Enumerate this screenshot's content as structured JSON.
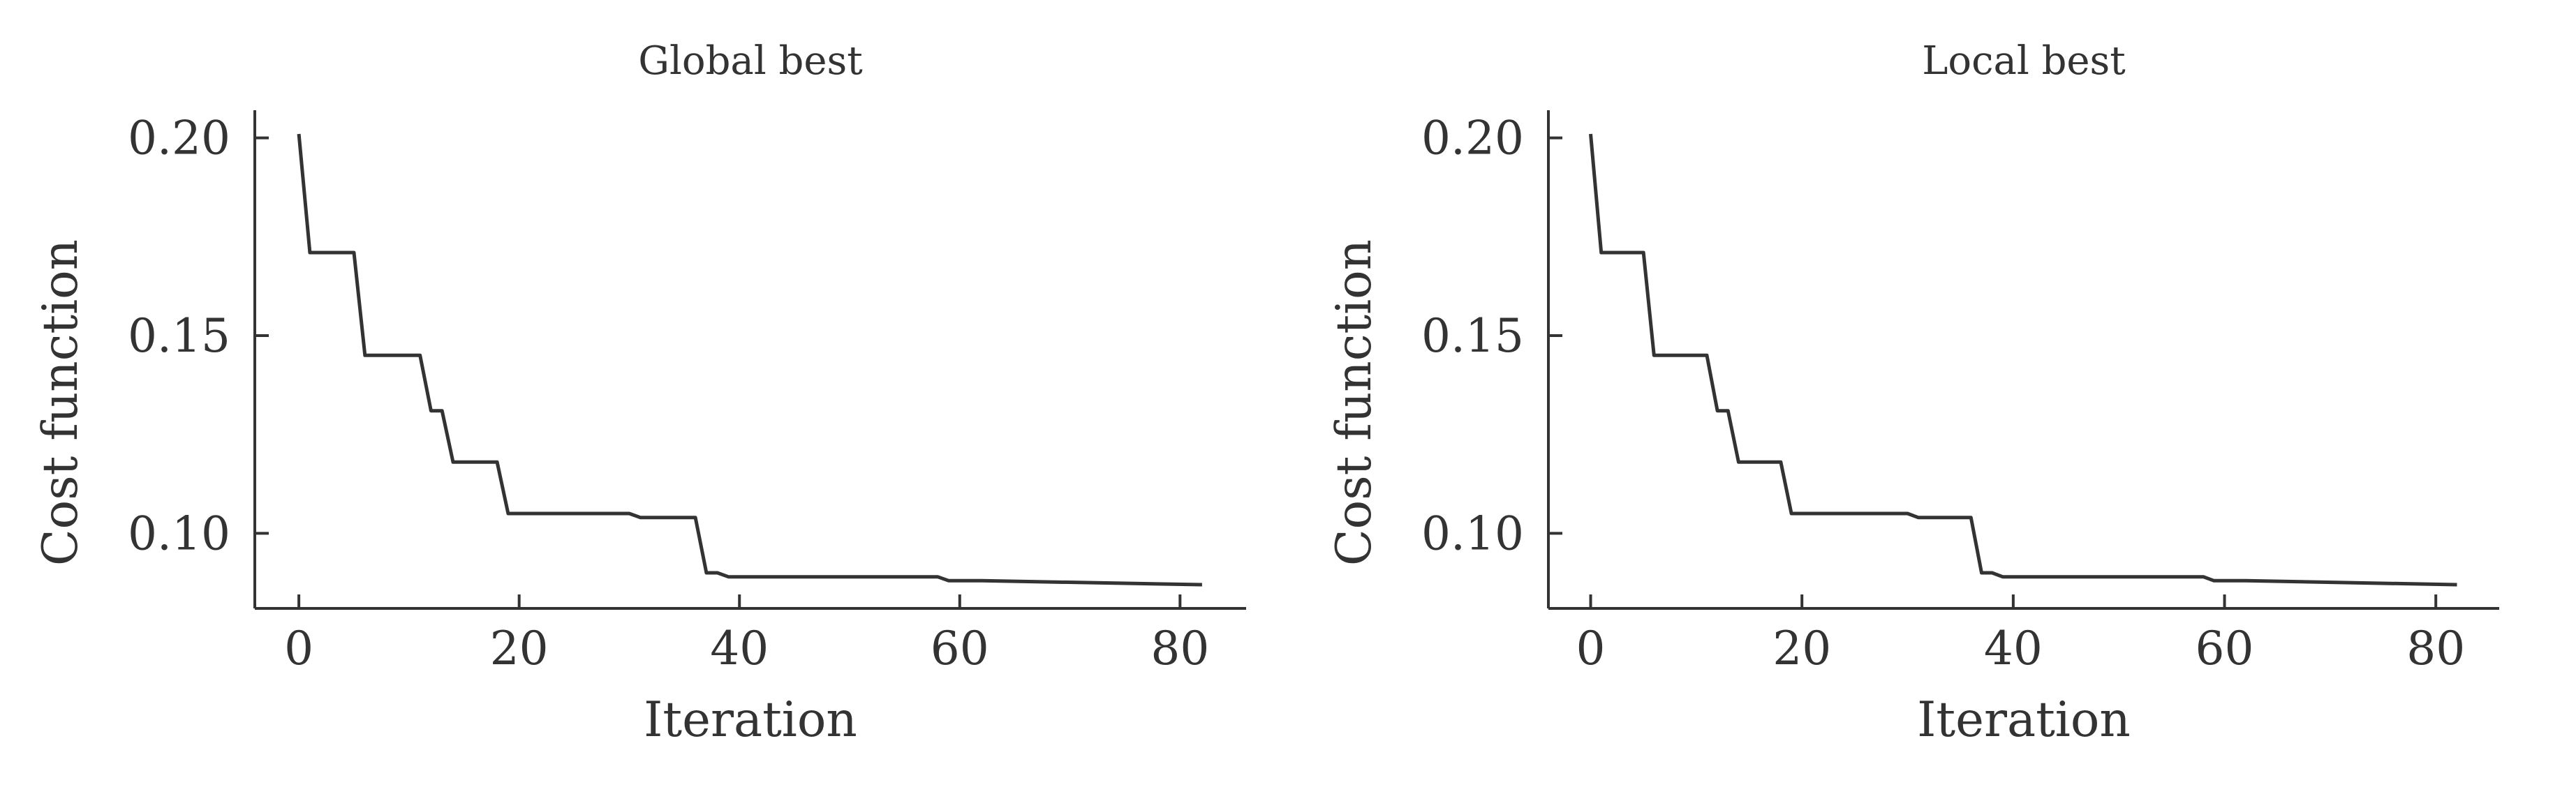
{
  "colors": {
    "line": "#333333",
    "axes": "#333333",
    "background": "#ffffff"
  },
  "chart_data": [
    {
      "type": "line",
      "title": "Global best",
      "xlabel": "Iteration",
      "ylabel": "Cost function",
      "xlim": [
        -4,
        86
      ],
      "ylim": [
        0.081,
        0.207
      ],
      "xticks": [
        0,
        20,
        40,
        60,
        80
      ],
      "xtick_labels": [
        "0",
        "20",
        "40",
        "60",
        "80"
      ],
      "yticks": [
        0.1,
        0.15,
        0.2
      ],
      "ytick_labels": [
        "0.10",
        "0.15",
        "0.20"
      ],
      "grid": false,
      "series": [
        {
          "x": [
            0,
            1,
            5,
            6,
            11,
            12,
            13,
            14,
            18,
            19,
            30,
            31,
            36,
            37,
            38,
            39,
            58,
            59,
            62,
            82
          ],
          "y": [
            0.201,
            0.171,
            0.171,
            0.145,
            0.145,
            0.131,
            0.131,
            0.118,
            0.118,
            0.105,
            0.105,
            0.104,
            0.104,
            0.09,
            0.09,
            0.089,
            0.089,
            0.088,
            0.088,
            0.087
          ]
        }
      ]
    },
    {
      "type": "line",
      "title": "Local best",
      "xlabel": "Iteration",
      "ylabel": "Cost function",
      "xlim": [
        -4,
        86
      ],
      "ylim": [
        0.081,
        0.207
      ],
      "xticks": [
        0,
        20,
        40,
        60,
        80
      ],
      "xtick_labels": [
        "0",
        "20",
        "40",
        "60",
        "80"
      ],
      "yticks": [
        0.1,
        0.15,
        0.2
      ],
      "ytick_labels": [
        "0.10",
        "0.15",
        "0.20"
      ],
      "grid": false,
      "series": [
        {
          "x": [
            0,
            1,
            5,
            6,
            11,
            12,
            13,
            14,
            18,
            19,
            30,
            31,
            36,
            37,
            38,
            39,
            58,
            59,
            62,
            82
          ],
          "y": [
            0.201,
            0.171,
            0.171,
            0.145,
            0.145,
            0.131,
            0.131,
            0.118,
            0.118,
            0.105,
            0.105,
            0.104,
            0.104,
            0.09,
            0.09,
            0.089,
            0.089,
            0.088,
            0.088,
            0.087
          ]
        }
      ]
    }
  ]
}
